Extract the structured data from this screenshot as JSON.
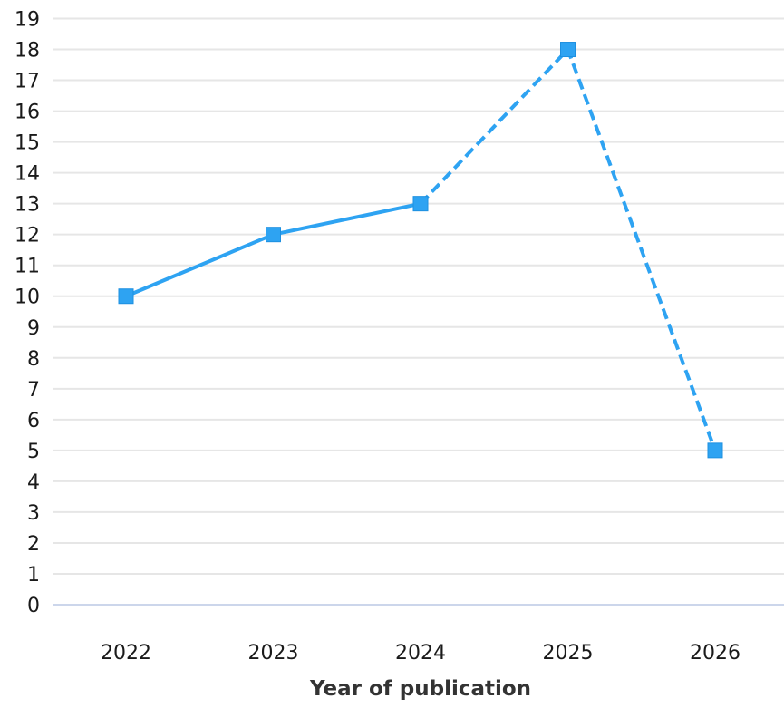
{
  "chart_data": {
    "type": "line",
    "title": "",
    "xlabel": "Year of publication",
    "ylabel": "",
    "categories": [
      "2022",
      "2023",
      "2024",
      "2025",
      "2026"
    ],
    "series": [
      {
        "values": [
          10,
          12,
          13,
          18,
          5
        ],
        "color": "#2ea3f2",
        "marker": "square",
        "dashed_from_index": 2
      }
    ],
    "ylim": [
      0,
      19
    ],
    "y_ticks": [
      "0",
      "1",
      "2",
      "3",
      "4",
      "5",
      "6",
      "7",
      "8",
      "9",
      "10",
      "11",
      "12",
      "13",
      "14",
      "15",
      "16",
      "17",
      "18",
      "19"
    ],
    "grid": true,
    "legend": "none"
  }
}
